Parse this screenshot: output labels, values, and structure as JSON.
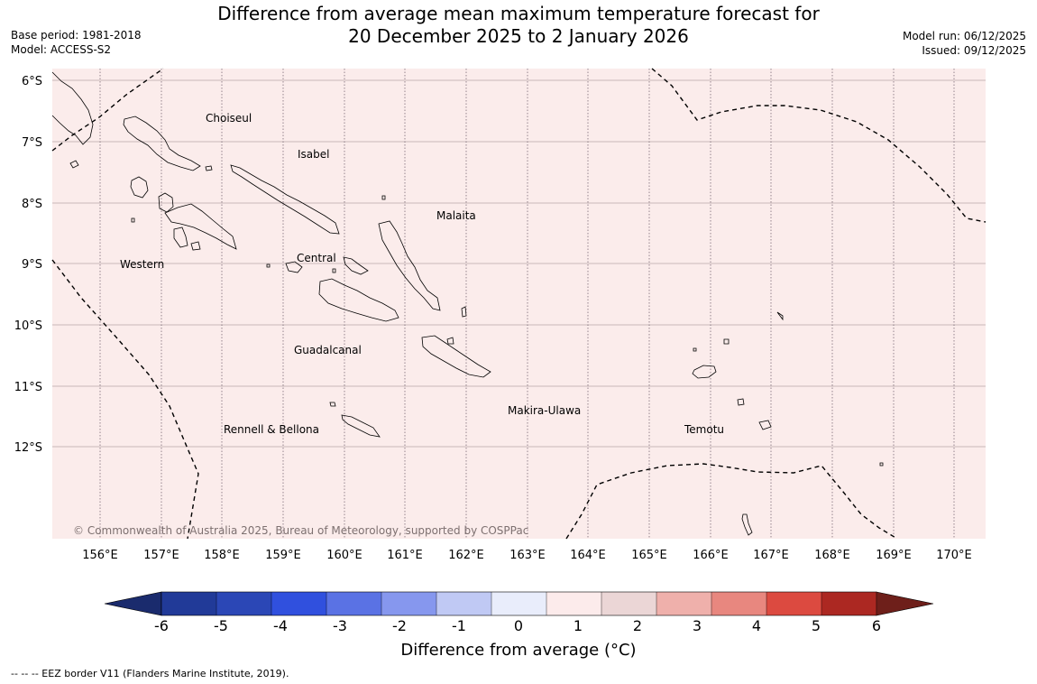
{
  "title": {
    "line1": "Difference from average mean maximum temperature forecast for",
    "line2": "20 December 2025 to 2 January 2026"
  },
  "meta_left": {
    "base_period": "Base period: 1981-2018",
    "model": "Model: ACCESS-S2"
  },
  "meta_right": {
    "model_run": "Model run: 06/12/2025",
    "issued": "Issued: 09/12/2025"
  },
  "map": {
    "background_color": "#fbeceb",
    "lat_labels": [
      "6°S",
      "7°S",
      "8°S",
      "9°S",
      "10°S",
      "11°S",
      "12°S"
    ],
    "lon_labels": [
      "156°E",
      "157°E",
      "158°E",
      "159°E",
      "160°E",
      "161°E",
      "162°E",
      "163°E",
      "164°E",
      "165°E",
      "166°E",
      "167°E",
      "168°E",
      "169°E",
      "170°E"
    ],
    "places": {
      "choiseul": "Choiseul",
      "isabel": "Isabel",
      "malaita": "Malaita",
      "western": "Western",
      "central": "Central",
      "guadalcanal": "Guadalcanal",
      "makira_ulawa": "Makira-Ulawa",
      "rennell_bellona": "Rennell & Bellona",
      "temotu": "Temotu"
    },
    "copyright": "© Commonwealth of Australia 2025, Bureau of Meteorology, supported by COSPPac"
  },
  "colorbar": {
    "title": "Difference from average (°C)",
    "tick_labels": [
      "-6",
      "-5",
      "-4",
      "-3",
      "-2",
      "-1",
      "0",
      "1",
      "2",
      "3",
      "4",
      "5",
      "6"
    ],
    "colors": [
      "#213a98",
      "#2b47b6",
      "#3050de",
      "#5a72e4",
      "#8697ee",
      "#c0c9f4",
      "#e9edfb",
      "#fcebeb",
      "#ebd6d6",
      "#efb0ab",
      "#e8877f",
      "#dc4a40",
      "#ac2822"
    ],
    "under_color": "#1a2b6d",
    "over_color": "#6e1f1a"
  },
  "eez_note": "--  --  -- EEZ border V11 (Flanders Marine Institute, 2019)."
}
